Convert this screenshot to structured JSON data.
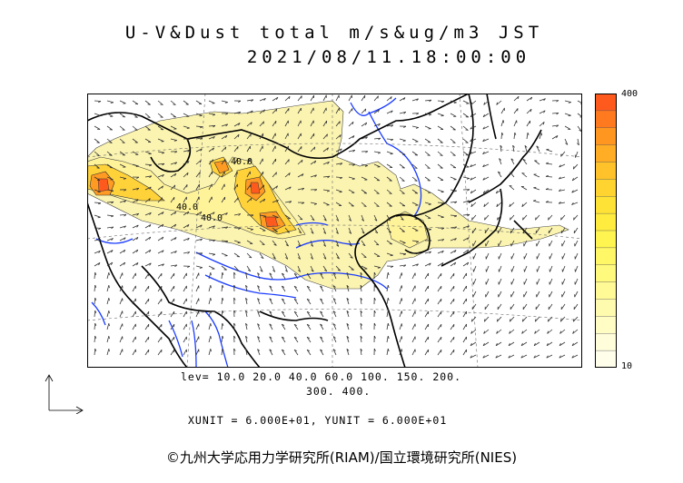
{
  "title_line1": "U-V&Dust total m/s&ug/m3 JST",
  "title_line2": "2021/08/11.18:00:00",
  "colorbar": {
    "max_label": "400",
    "min_label": "10",
    "colors": [
      "#ff5a1e",
      "#ff7a1e",
      "#ff9620",
      "#ffad24",
      "#ffc22a",
      "#ffd430",
      "#ffe236",
      "#ffec3e",
      "#fff450",
      "#fff766",
      "#fff97e",
      "#fffa96",
      "#fffbae",
      "#fffcc4",
      "#fffdda",
      "#fffeea"
    ]
  },
  "levels_line1": "lev= 10.0 20.0 40.0 60.0 100. 150. 200.",
  "levels_line2": "300. 400.",
  "contour_labels": [
    "40.0",
    "40.0",
    "40.0"
  ],
  "units_line": "XUNIT = 6.000E+01, YUNIT = 6.000E+01",
  "credit": "©九州大学応用力学研究所(RIAM)/国立環境研究所(NIES)",
  "colors": {
    "coast": "#000000",
    "river": "#1a3cff",
    "arrow": "#333333",
    "dust_low": "#fbf4b0"
  }
}
